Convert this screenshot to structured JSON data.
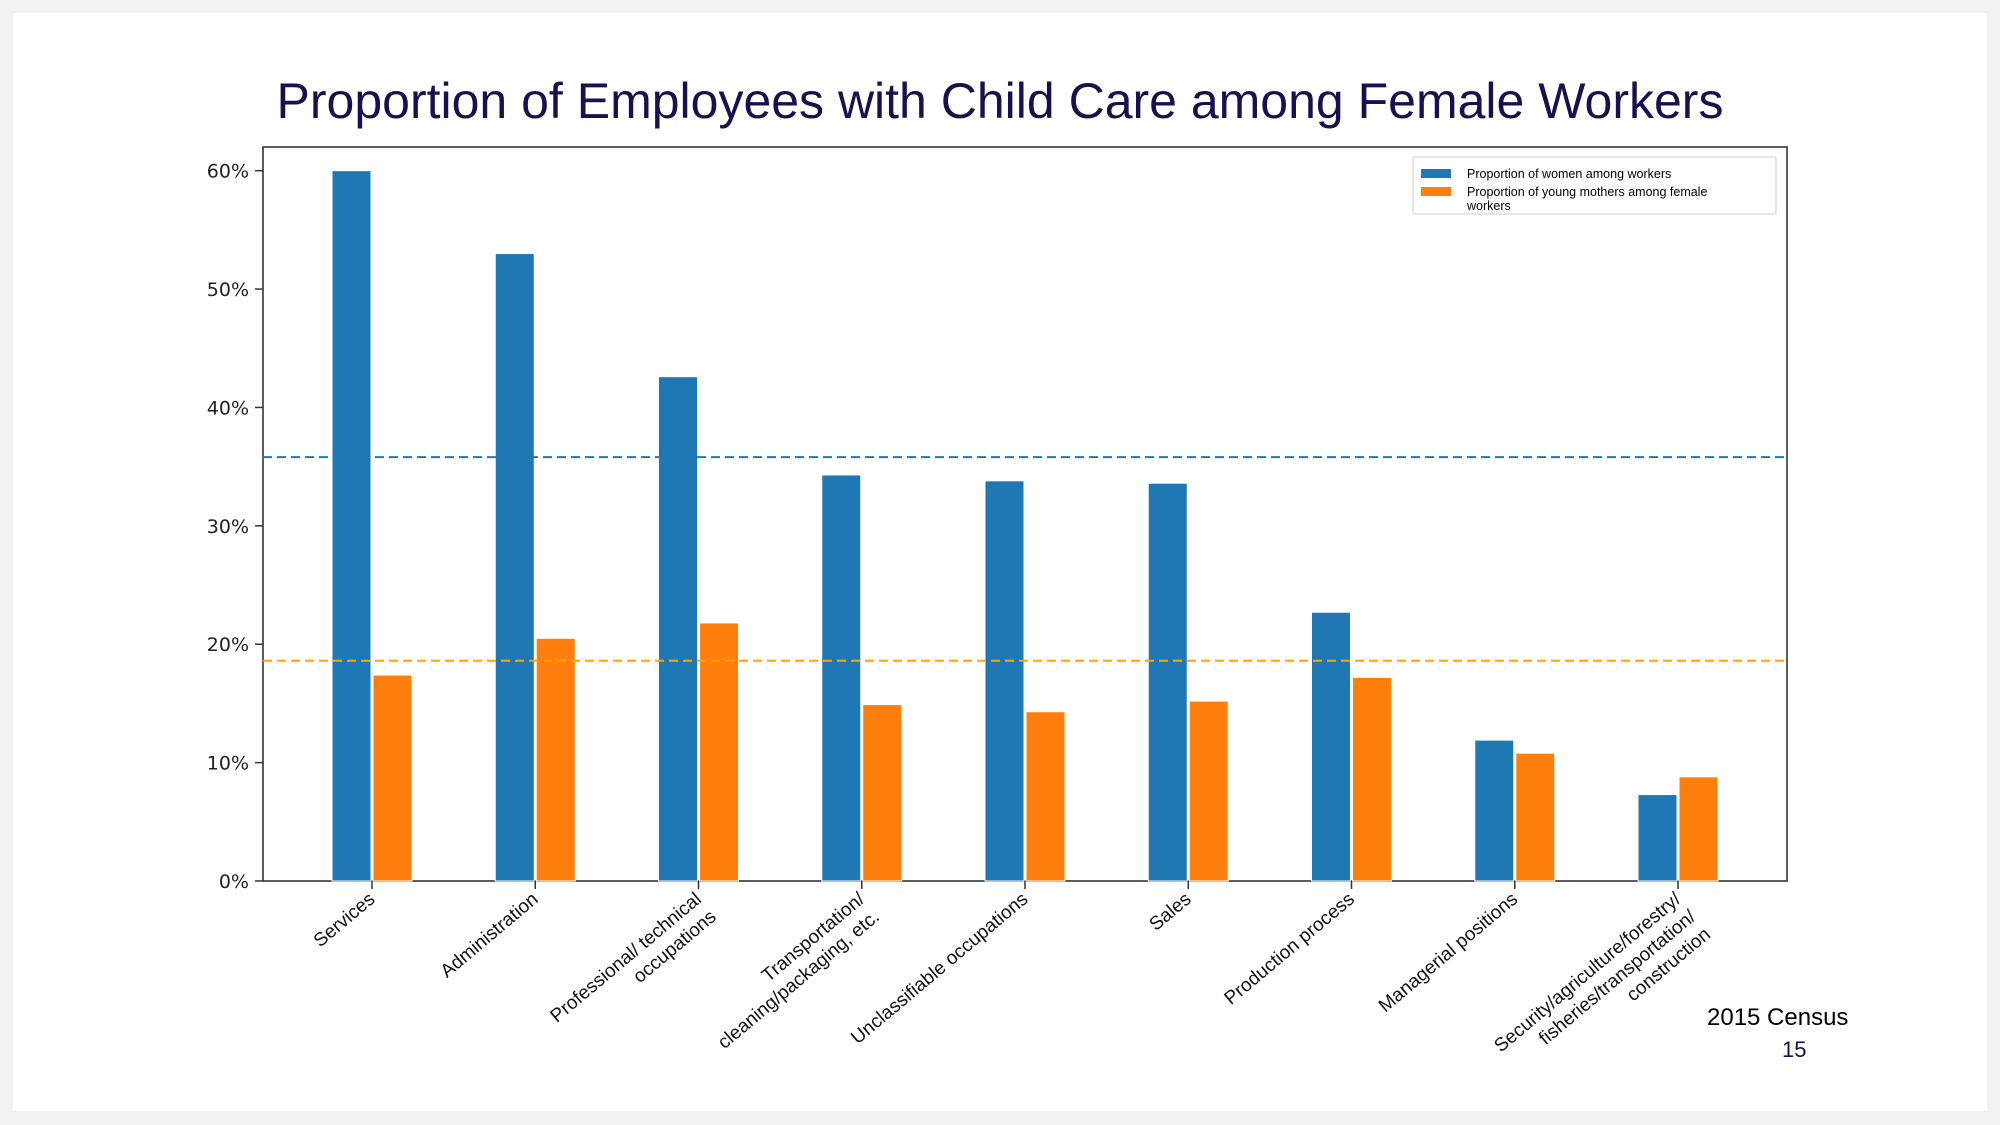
{
  "slide": {
    "title": "Proportion of Employees with Child Care among Female Workers",
    "source": "2015 Census",
    "page_number": "15"
  },
  "chart_data": {
    "type": "bar",
    "title": "",
    "xlabel": "",
    "ylabel": "",
    "ylim": [
      0,
      0.62
    ],
    "yticks": [
      0,
      0.1,
      0.2,
      0.3,
      0.4,
      0.5,
      0.6
    ],
    "ytick_labels": [
      "0%",
      "10%",
      "20%",
      "30%",
      "40%",
      "50%",
      "60%"
    ],
    "categories": [
      "Services",
      "Administration",
      "Professional/ technical\noccupations",
      "Transportation/\ncleaning/packaging, etc.",
      "Unclassifiable occupations",
      "Sales",
      "Production process",
      "Managerial positions",
      "Security/agriculture/forestry/\nfisheries/transportation/\nconstruction"
    ],
    "series": [
      {
        "name": "Proportion of women among workers",
        "color": "#1f77b4",
        "values": [
          0.6,
          0.53,
          0.426,
          0.343,
          0.338,
          0.336,
          0.227,
          0.119,
          0.073
        ]
      },
      {
        "name": "Proportion of young mothers among female workers",
        "color": "#ff7f0e",
        "values": [
          0.174,
          0.205,
          0.218,
          0.149,
          0.143,
          0.152,
          0.172,
          0.108,
          0.088
        ]
      }
    ],
    "reference_lines": [
      {
        "value": 0.358,
        "color": "#1f77b4",
        "style": "dashed"
      },
      {
        "value": 0.186,
        "color": "#ffa500",
        "style": "dashed"
      }
    ],
    "legend": {
      "placement": "top-right",
      "lines": [
        [
          "Proportion of women among workers"
        ],
        [
          "Proportion of young mothers among female",
          "workers"
        ]
      ]
    },
    "grid": false
  }
}
